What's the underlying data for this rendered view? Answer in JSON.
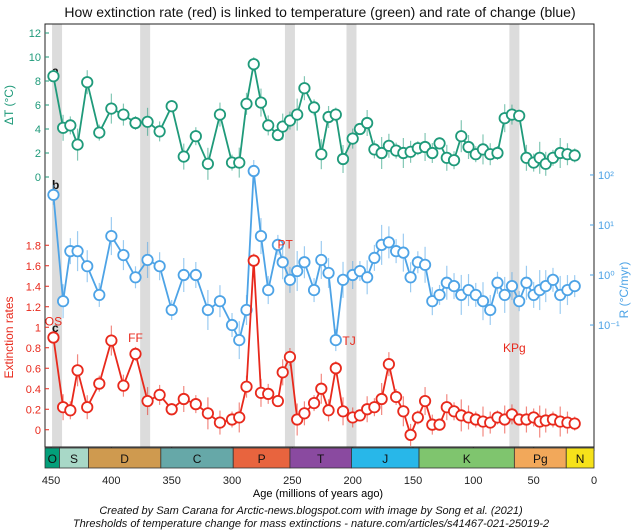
{
  "title": "How extinction rate (red) is linked to temperature (green) and rate of change (blue)",
  "credits": {
    "line1": "Created by Sam Carana for Arctic-news.blogspot.com with image by Song et al. (2021)",
    "line2": "Thresholds of temperature change for mass extinctions -  nature.com/articles/s41467-021-25019-2"
  },
  "colors": {
    "temperature": "#1f9a7a",
    "rate": "#4da3e6",
    "extinction": "#e8291c",
    "band": "#dcdcdc"
  },
  "chart_data": {
    "type": "line",
    "xlabel": "Age (millions of years ago)",
    "xlim": [
      455,
      0
    ],
    "xticks": [
      450,
      400,
      350,
      300,
      250,
      200,
      150,
      100,
      50,
      0
    ],
    "highlight_ages": [
      445,
      372,
      252,
      201,
      66
    ],
    "panels": [
      {
        "letter": "a",
        "ylabel": "ΔT (°C)",
        "ylim": [
          0,
          12
        ],
        "yticks": [
          0,
          2,
          4,
          6,
          8,
          10,
          12
        ],
        "x": [
          448,
          440,
          434,
          428,
          420,
          410,
          400,
          390,
          380,
          370,
          360,
          350,
          340,
          330,
          320,
          310,
          300,
          294,
          288,
          282,
          276,
          270,
          262,
          258,
          252,
          246,
          240,
          232,
          226,
          220,
          214,
          208,
          200,
          194,
          188,
          182,
          176,
          170,
          164,
          158,
          152,
          146,
          140,
          134,
          128,
          122,
          116,
          110,
          104,
          98,
          92,
          86,
          80,
          74,
          68,
          62,
          56,
          50,
          45,
          40,
          34,
          28,
          22,
          16
        ],
        "values": [
          8.4,
          4.1,
          4.3,
          2.7,
          7.9,
          3.7,
          5.7,
          5.2,
          4.5,
          4.6,
          3.8,
          5.9,
          1.7,
          3.4,
          1.1,
          5.2,
          1.2,
          1.2,
          6.1,
          9.4,
          6.2,
          4.3,
          3.5,
          4.2,
          4.7,
          5.2,
          7.4,
          5.8,
          1.9,
          5.0,
          5.2,
          1.5,
          3.2,
          4.0,
          4.5,
          2.3,
          2.0,
          2.6,
          2.2,
          2.0,
          2.1,
          2.4,
          2.5,
          2.0,
          2.8,
          1.6,
          1.4,
          3.4,
          2.5,
          1.9,
          2.3,
          1.9,
          2.0,
          4.9,
          5.2,
          5.1,
          1.6,
          1.2,
          1.6,
          1.1,
          1.6,
          2.0,
          1.9,
          1.8
        ]
      },
      {
        "letter": "b",
        "ylabel": "R (°C/myr)",
        "scale": "log",
        "ylim": [
          0.02,
          500
        ],
        "yticks": [
          100,
          10,
          1,
          0.1
        ],
        "ytick_labels": [
          "10²",
          "10¹",
          "10⁰",
          "10⁻¹"
        ],
        "x": [
          448,
          440,
          434,
          428,
          420,
          410,
          400,
          390,
          380,
          370,
          360,
          350,
          340,
          330,
          320,
          310,
          300,
          294,
          288,
          282,
          276,
          270,
          262,
          258,
          252,
          246,
          240,
          232,
          226,
          220,
          214,
          208,
          200,
          194,
          188,
          182,
          176,
          170,
          164,
          158,
          152,
          146,
          140,
          134,
          128,
          122,
          116,
          110,
          104,
          98,
          92,
          86,
          80,
          74,
          68,
          62,
          56,
          50,
          45,
          40,
          34,
          28,
          22,
          16
        ],
        "values": [
          40.0,
          0.3,
          3.0,
          3.0,
          1.5,
          0.4,
          6.0,
          2.5,
          0.9,
          2.0,
          1.5,
          0.2,
          1.0,
          1.0,
          0.2,
          0.3,
          0.1,
          0.05,
          0.2,
          120.0,
          6.0,
          0.5,
          4.0,
          1.8,
          0.8,
          1.2,
          1.8,
          0.5,
          2.0,
          1.1,
          0.05,
          0.8,
          1.0,
          1.2,
          0.9,
          2.2,
          4.0,
          4.5,
          3.0,
          2.8,
          0.9,
          1.8,
          1.6,
          0.3,
          0.4,
          0.7,
          0.6,
          0.4,
          0.5,
          0.4,
          0.3,
          0.2,
          0.7,
          0.4,
          0.6,
          0.3,
          0.7,
          0.4,
          0.5,
          0.6,
          0.8,
          0.4,
          0.5,
          0.6
        ]
      },
      {
        "letter": "c",
        "ylabel": "Extinction rates",
        "ylim": [
          -0.1,
          1.9
        ],
        "yticks": [
          0,
          0.2,
          0.4,
          0.6,
          0.8,
          1.0,
          1.2,
          1.4,
          1.6,
          1.8
        ],
        "x": [
          448,
          440,
          434,
          428,
          420,
          410,
          400,
          390,
          380,
          370,
          360,
          350,
          340,
          330,
          320,
          310,
          300,
          294,
          288,
          282,
          276,
          270,
          262,
          258,
          252,
          246,
          240,
          232,
          226,
          220,
          214,
          208,
          200,
          194,
          188,
          182,
          176,
          170,
          164,
          158,
          152,
          146,
          140,
          134,
          128,
          122,
          116,
          110,
          104,
          98,
          92,
          86,
          80,
          74,
          68,
          62,
          56,
          50,
          45,
          40,
          34,
          28,
          22,
          16
        ],
        "values": [
          0.9,
          0.22,
          0.19,
          0.58,
          0.22,
          0.45,
          0.87,
          0.43,
          0.74,
          0.28,
          0.34,
          0.2,
          0.3,
          0.25,
          0.16,
          0.07,
          0.1,
          0.12,
          0.42,
          1.65,
          0.36,
          0.35,
          0.28,
          0.56,
          0.71,
          0.1,
          0.16,
          0.26,
          0.4,
          0.19,
          0.6,
          0.18,
          0.12,
          0.14,
          0.2,
          0.22,
          0.3,
          0.64,
          0.32,
          0.18,
          -0.05,
          0.12,
          0.28,
          0.05,
          0.05,
          0.22,
          0.18,
          0.14,
          0.12,
          0.1,
          0.08,
          0.07,
          0.12,
          0.1,
          0.15,
          0.1,
          0.1,
          0.12,
          0.08,
          0.09,
          0.1,
          0.08,
          0.07,
          0.06
        ],
        "annotations": [
          {
            "label": "OS",
            "x": 448,
            "y": 0.9
          },
          {
            "label": "FF",
            "x": 380,
            "y": 0.74
          },
          {
            "label": "PT",
            "x": 256,
            "y": 1.65
          },
          {
            "label": "TJ",
            "x": 203,
            "y": 0.71
          },
          {
            "label": "KPg",
            "x": 66,
            "y": 0.64
          }
        ]
      }
    ],
    "periods": [
      {
        "label": "O",
        "start": 485,
        "end": 443,
        "color": "#039f7a"
      },
      {
        "label": "S",
        "start": 443,
        "end": 419,
        "color": "#a8d8c7"
      },
      {
        "label": "D",
        "start": 419,
        "end": 359,
        "color": "#cf9a4f"
      },
      {
        "label": "C",
        "start": 359,
        "end": 299,
        "color": "#66a8a8"
      },
      {
        "label": "P",
        "start": 299,
        "end": 252,
        "color": "#e8643e"
      },
      {
        "label": "T",
        "start": 252,
        "end": 201,
        "color": "#8a4aa0"
      },
      {
        "label": "J",
        "start": 201,
        "end": 145,
        "color": "#28b7e9"
      },
      {
        "label": "K",
        "start": 145,
        "end": 66,
        "color": "#7fc56e"
      },
      {
        "label": "Pg",
        "start": 66,
        "end": 23,
        "color": "#f2a85a"
      },
      {
        "label": "N",
        "start": 23,
        "end": 0,
        "color": "#f6e21a"
      }
    ]
  }
}
